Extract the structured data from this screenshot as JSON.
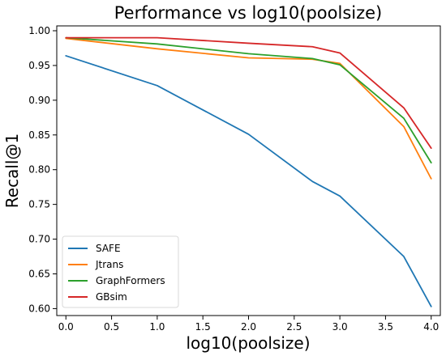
{
  "chart_data": {
    "type": "line",
    "title": "Performance vs log10(poolsize)",
    "xlabel": "log10(poolsize)",
    "ylabel": "Recall@1",
    "x": [
      0.0,
      1.0,
      2.0,
      2.7,
      3.0,
      3.7,
      4.0
    ],
    "xlim": [
      -0.1,
      4.1
    ],
    "ylim": [
      0.59,
      1.007
    ],
    "xticks": [
      0.0,
      0.5,
      1.0,
      1.5,
      2.0,
      2.5,
      3.0,
      3.5,
      4.0
    ],
    "xtick_labels": [
      "0.0",
      "0.5",
      "1.0",
      "1.5",
      "2.0",
      "2.5",
      "3.0",
      "3.5",
      "4.0"
    ],
    "yticks": [
      0.6,
      0.65,
      0.7,
      0.75,
      0.8,
      0.85,
      0.9,
      0.95,
      1.0
    ],
    "ytick_labels": [
      "0.60",
      "0.65",
      "0.70",
      "0.75",
      "0.80",
      "0.85",
      "0.90",
      "0.95",
      "1.00"
    ],
    "grid": false,
    "legend_position": "lower-left",
    "series": [
      {
        "name": "SAFE",
        "color": "#1f77b4",
        "values": [
          0.964,
          0.921,
          0.851,
          0.783,
          0.762,
          0.675,
          0.603
        ]
      },
      {
        "name": "Jtrans",
        "color": "#ff7f0e",
        "values": [
          0.989,
          0.974,
          0.961,
          0.959,
          0.953,
          0.862,
          0.787
        ]
      },
      {
        "name": "GraphFormers",
        "color": "#2ca02c",
        "values": [
          0.99,
          0.981,
          0.967,
          0.96,
          0.951,
          0.874,
          0.81
        ]
      },
      {
        "name": "GBsim",
        "color": "#d62728",
        "values": [
          0.99,
          0.99,
          0.982,
          0.977,
          0.968,
          0.889,
          0.831
        ]
      }
    ]
  }
}
